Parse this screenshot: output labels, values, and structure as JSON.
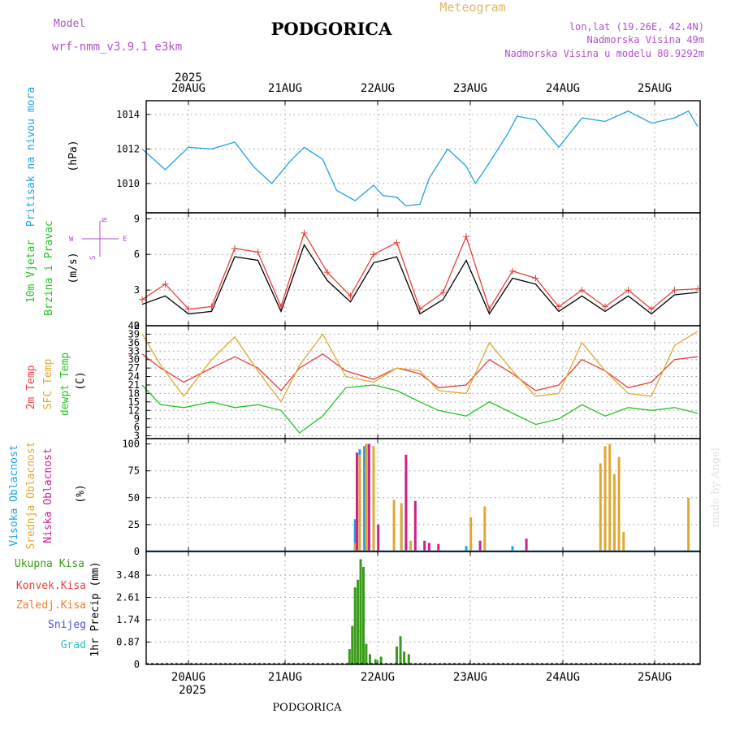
{
  "header": {
    "model_label": "Model",
    "model_name": "wrf-nmm_v3.9.1 e3km",
    "city": "PODGORICA",
    "title": "Meteogram",
    "lonlat": "lon,lat (19.26E, 42.4N)",
    "altitude": "Nadmorska Visina 49m",
    "model_altitude": "Nadmorska Visina u modelu 80.9292m",
    "footer_city": "PODGORICA",
    "watermark": "made by Angel"
  },
  "colors": {
    "pressure": "#1fa0e6",
    "t2m": "#e8403c",
    "sfc": "#e0a830",
    "dewpt": "#22c422",
    "high_cloud": "#1fa0e6",
    "mid_cloud": "#e0a830",
    "low_cloud": "#d0208a",
    "total_rain": "#3a9a1a",
    "conv_rain": "#e8403c",
    "freezing": "#f07c2a",
    "snow": "#5050d8",
    "hail": "#30c0c0",
    "wind_speed": "#000000",
    "gust": "#e8403c",
    "purple_text": "#b050d0",
    "axis_cyan": "#1fa0e6"
  },
  "chart_data": [
    {
      "type": "line",
      "title": "Pritisak na nivou mora",
      "ylabel": "(hPa)",
      "x_unit": "days since 2025-08-19 12Z",
      "x_range": [
        0,
        6
      ],
      "ylim": [
        1008.3,
        1014.8
      ],
      "yticks": [
        "1010",
        "1012",
        "1014"
      ],
      "series": [
        {
          "name": "Pressure",
          "x": [
            0,
            0.25,
            0.5,
            0.75,
            1,
            1.2,
            1.4,
            1.6,
            1.75,
            1.95,
            2.1,
            2.3,
            2.5,
            2.6,
            2.75,
            2.85,
            3.0,
            3.1,
            3.3,
            3.5,
            3.6,
            3.75,
            3.95,
            4.05,
            4.25,
            4.5,
            4.75,
            5.0,
            5.25,
            5.5,
            5.75,
            5.9,
            6.0
          ],
          "values": [
            1012.0,
            1010.8,
            1012.1,
            1012.0,
            1012.4,
            1011.0,
            1010.0,
            1011.3,
            1012.1,
            1011.4,
            1009.6,
            1009.0,
            1009.9,
            1009.3,
            1009.2,
            1008.7,
            1008.8,
            1010.3,
            1012.0,
            1011.0,
            1010.0,
            1011.2,
            1012.9,
            1013.9,
            1013.7,
            1012.1,
            1013.8,
            1013.6,
            1014.2,
            1013.5,
            1013.8,
            1014.2,
            1013.3
          ]
        }
      ]
    },
    {
      "type": "line",
      "title": "10m Vjetar Brzina i Pravac",
      "ylabel": "(m/s)",
      "ylim": [
        0,
        9.5
      ],
      "yticks": [
        "0",
        "3",
        "6",
        "9"
      ],
      "compass": {
        "n": "N",
        "s": "S",
        "e": "E",
        "w": "W"
      },
      "series": [
        {
          "name": "Wind speed",
          "x": [
            0,
            0.25,
            0.5,
            0.75,
            1,
            1.25,
            1.5,
            1.75,
            2,
            2.25,
            2.5,
            2.75,
            3,
            3.25,
            3.5,
            3.75,
            4,
            4.25,
            4.5,
            4.75,
            5,
            5.25,
            5.5,
            5.75,
            6
          ],
          "values": [
            1.8,
            2.5,
            1.0,
            1.2,
            5.8,
            5.5,
            1.2,
            6.8,
            3.8,
            2.0,
            5.3,
            5.8,
            1.0,
            2.2,
            5.5,
            1.0,
            4.0,
            3.5,
            1.2,
            2.5,
            1.2,
            2.5,
            1.0,
            2.6,
            2.8
          ]
        },
        {
          "name": "Gust",
          "x": [
            0,
            0.25,
            0.5,
            0.75,
            1,
            1.25,
            1.5,
            1.75,
            2,
            2.25,
            2.5,
            2.75,
            3,
            3.25,
            3.5,
            3.75,
            4,
            4.25,
            4.5,
            4.75,
            5,
            5.25,
            5.5,
            5.75,
            6
          ],
          "values": [
            2.2,
            3.5,
            1.4,
            1.6,
            6.5,
            6.2,
            1.6,
            7.8,
            4.5,
            2.5,
            6.0,
            7.0,
            1.4,
            2.8,
            7.5,
            1.4,
            4.6,
            4.0,
            1.6,
            3.0,
            1.6,
            3.0,
            1.4,
            3.0,
            3.1
          ]
        }
      ]
    },
    {
      "type": "line",
      "title": "2m Temp / SFC Temp / dewpt Temp",
      "ylabel": "(C)",
      "ylim": [
        2,
        42
      ],
      "yticks": [
        "3",
        "6",
        "9",
        "12",
        "15",
        "18",
        "21",
        "24",
        "27",
        "30",
        "33",
        "36",
        "39",
        "42"
      ],
      "series": [
        {
          "name": "2m Temp",
          "x": [
            0,
            0.2,
            0.45,
            0.75,
            1.0,
            1.25,
            1.5,
            1.7,
            1.95,
            2.2,
            2.5,
            2.75,
            3.0,
            3.2,
            3.5,
            3.75,
            4.0,
            4.25,
            4.5,
            4.75,
            5.0,
            5.25,
            5.5,
            5.75,
            6.0
          ],
          "values": [
            32,
            27,
            22,
            27,
            31,
            27,
            19,
            27,
            32,
            26,
            23,
            27,
            25,
            20,
            21,
            30,
            25,
            19,
            21,
            30,
            26,
            20,
            22,
            30,
            31
          ]
        },
        {
          "name": "SFC Temp",
          "x": [
            0,
            0.2,
            0.45,
            0.75,
            1.0,
            1.25,
            1.5,
            1.7,
            1.95,
            2.2,
            2.5,
            2.75,
            3.0,
            3.2,
            3.5,
            3.75,
            4.0,
            4.25,
            4.5,
            4.75,
            5.0,
            5.25,
            5.5,
            5.75,
            6.0
          ],
          "values": [
            39,
            28,
            17,
            30,
            38,
            26,
            15,
            28,
            39,
            24,
            22,
            27,
            26,
            19,
            18,
            36,
            26,
            17,
            18,
            36,
            26,
            18,
            17,
            35,
            40
          ]
        },
        {
          "name": "dewpt Temp",
          "x": [
            0,
            0.2,
            0.45,
            0.75,
            1.0,
            1.25,
            1.5,
            1.7,
            1.95,
            2.2,
            2.5,
            2.75,
            3.0,
            3.2,
            3.5,
            3.75,
            4.0,
            4.25,
            4.5,
            4.75,
            5.0,
            5.25,
            5.5,
            5.75,
            6.0
          ],
          "values": [
            21,
            14,
            13,
            15,
            13,
            14,
            12,
            4,
            10,
            20,
            21,
            19,
            15,
            12,
            10,
            15,
            11,
            7,
            9,
            14,
            10,
            13,
            12,
            13,
            11
          ]
        }
      ]
    },
    {
      "type": "bar",
      "title": "Visoka Oblacnost / Srednja Oblacnost / Niska Oblacnost",
      "ylabel": "(%)",
      "ylim": [
        0,
        105
      ],
      "yticks": [
        "0",
        "25",
        "50",
        "75",
        "100"
      ],
      "series": [
        {
          "name": "Visoka Oblacnost",
          "x": [
            2.3,
            2.35,
            2.4,
            2.45,
            2.5,
            2.8,
            2.85,
            3.5,
            4.0,
            5.1
          ],
          "values": [
            30,
            95,
            98,
            100,
            60,
            40,
            75,
            5,
            5,
            18
          ]
        },
        {
          "name": "Srednja Oblacnost",
          "x": [
            2.3,
            2.35,
            2.42,
            2.5,
            2.72,
            2.8,
            2.9,
            3.55,
            3.7,
            4.95,
            5.0,
            5.05,
            5.1,
            5.15,
            5.2,
            5.9
          ],
          "values": [
            8,
            90,
            100,
            98,
            48,
            45,
            10,
            32,
            42,
            82,
            98,
            100,
            72,
            88,
            18,
            50
          ]
        },
        {
          "name": "Niska Oblacnost",
          "x": [
            2.32,
            2.45,
            2.55,
            2.85,
            2.95,
            3.05,
            3.1,
            3.2,
            3.65,
            4.15
          ],
          "values": [
            92,
            100,
            25,
            90,
            47,
            10,
            8,
            7,
            10,
            12
          ]
        }
      ]
    },
    {
      "type": "bar",
      "title": "1hr Precip",
      "ylabel": "1hr Precip (mm)",
      "ylim": [
        0,
        4.4
      ],
      "yticks": [
        "0",
        "0.87",
        "1.74",
        "2.61",
        "3.48"
      ],
      "legend": [
        "Ukupna Kisa",
        "Konvek.Kisa",
        "Zaledj.Kisa",
        "Snijeg",
        "Grad"
      ],
      "series": [
        {
          "name": "Ukupna Kisa",
          "x": [
            2.24,
            2.27,
            2.3,
            2.33,
            2.36,
            2.39,
            2.42,
            2.46,
            2.52,
            2.58,
            2.75,
            2.79,
            2.83,
            2.88
          ],
          "values": [
            0.6,
            1.5,
            3.0,
            3.3,
            4.1,
            3.8,
            0.8,
            0.4,
            0.2,
            0.3,
            0.7,
            1.1,
            0.5,
            0.4
          ]
        }
      ]
    }
  ],
  "x_axis": {
    "day_labels": [
      "20AUG",
      "21AUG",
      "22AUG",
      "23AUG",
      "24AUG",
      "25AUG"
    ],
    "year": "2025"
  },
  "left_labels": {
    "pressure": "Pritisak na nivou mora",
    "wind1": "10m Vjetar",
    "wind2": "Brzina i Pravac",
    "t2m": "2m Temp",
    "sfc": "SFC Temp",
    "dewpt": "dewpt Temp",
    "high": "Visoka Oblacnost",
    "mid": "Srednja Oblacnost",
    "low": "Niska Oblacnost",
    "hpa": "(hPa)",
    "ms": "(m/s)",
    "c": "(C)",
    "pct": "(%)",
    "precip_unit": "1hr Precip (mm)"
  }
}
